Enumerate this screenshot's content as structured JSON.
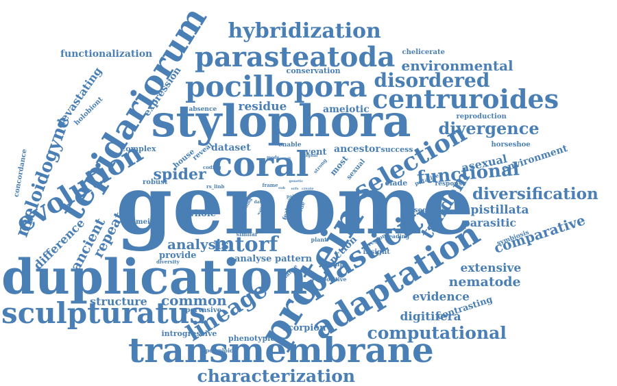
{
  "color": "#4a7fb5",
  "words": [
    "genome",
    "duplication",
    "stylophora",
    "transmembrane",
    "protein",
    "coral",
    "adaptation",
    "tepidariorum",
    "sculpturatus",
    "pocillopora",
    "plasticity",
    "parasteatoda",
    "evolution",
    "centruroides",
    "lineage",
    "selection",
    "hybridization",
    "characterization",
    "meloidogyne",
    "mtorf",
    "disordered",
    "computational",
    "diversification",
    "tandem",
    "divergence",
    "functional",
    "spider",
    "environmental",
    "comparative",
    "nematode",
    "ancient",
    "repeat",
    "analysis",
    "devastating",
    "residue",
    "pistillata",
    "common",
    "difference",
    "evidence",
    "extensive",
    "digitifera",
    "parasitic",
    "structure",
    "dataset",
    "asexual",
    "environment",
    "functionalization",
    "expression",
    "ancestor",
    "ameiotic",
    "analyse",
    "pattern",
    "provide",
    "contrasting",
    "scorpion",
    "introgressive",
    "phenotypic",
    "whole",
    "house",
    "event",
    "success",
    "conservation",
    "chelicerate",
    "complex",
    "sequence",
    "meiosis",
    "clade",
    "reproduction",
    "horseshoe",
    "function",
    "insight",
    "pervasive",
    "holobiont",
    "concordance",
    "robust",
    "absence",
    "reveal",
    "enable",
    "most",
    "sexual",
    "coding",
    "plant",
    "region",
    "reading",
    "symbiosis",
    "response",
    "putative",
    "polyploid",
    "diversity",
    "glance",
    "positive",
    "group",
    "strong",
    "signal",
    "frame",
    "rs_linb",
    "similar",
    "study",
    "encode",
    "feature",
    "pair",
    "genetic",
    "result",
    "mode",
    "data",
    "walk",
    "coding",
    "orfs",
    "sub",
    "create"
  ]
}
